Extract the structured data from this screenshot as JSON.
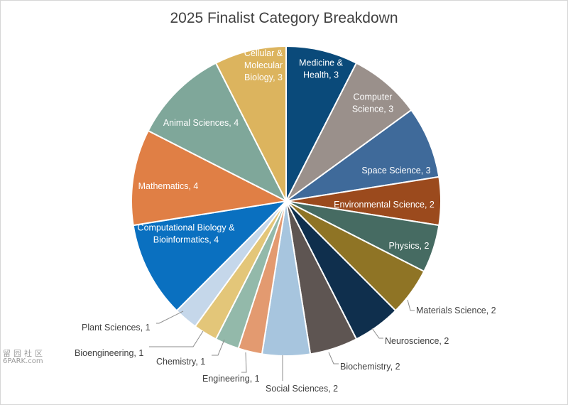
{
  "chart_data": {
    "type": "pie",
    "title": "2025 Finalist Category Breakdown",
    "slices": [
      {
        "label": "Medicine & Health",
        "value": 3,
        "color": "#0a4a7a"
      },
      {
        "label": "Computer Science",
        "value": 3,
        "color": "#9a908b"
      },
      {
        "label": "Space Science",
        "value": 3,
        "color": "#3f6a9a"
      },
      {
        "label": "Environmental Science",
        "value": 2,
        "color": "#9b4a1d"
      },
      {
        "label": "Physics",
        "value": 2,
        "color": "#466b62"
      },
      {
        "label": "Materials Science",
        "value": 2,
        "color": "#8f7425"
      },
      {
        "label": "Neuroscience",
        "value": 2,
        "color": "#0f2f4d"
      },
      {
        "label": "Biochemistry",
        "value": 2,
        "color": "#5e5552"
      },
      {
        "label": "Social Sciences",
        "value": 2,
        "color": "#a7c5de"
      },
      {
        "label": "Engineering",
        "value": 1,
        "color": "#e39a70"
      },
      {
        "label": "Chemistry",
        "value": 1,
        "color": "#93b9aa"
      },
      {
        "label": "Bioengineering",
        "value": 1,
        "color": "#e3c679"
      },
      {
        "label": "Plant Sciences",
        "value": 1,
        "color": "#c5d7ea"
      },
      {
        "label": "Computational Biology & Bioinformatics",
        "value": 4,
        "color": "#0a70c0"
      },
      {
        "label": "Mathematics",
        "value": 4,
        "color": "#e07f45"
      },
      {
        "label": "Animal Sciences",
        "value": 4,
        "color": "#7fa79a"
      },
      {
        "label": "Cellular & Molecular Biology",
        "value": 3,
        "color": "#dcb45e"
      }
    ],
    "slice_labels": [
      {
        "lines": [
          "Medicine &",
          "Health, 3"
        ],
        "color": "#ffffff"
      },
      {
        "lines": [
          "Computer",
          "Science, 3"
        ],
        "color": "#ffffff"
      },
      {
        "lines": [
          "Space Science, 3"
        ],
        "color": "#ffffff"
      },
      {
        "lines": [
          "Environmental Science, 2"
        ],
        "color": "#ffffff"
      },
      {
        "lines": [
          "Physics, 2"
        ],
        "color": "#ffffff"
      },
      {
        "lines": [
          "Materials Science, 2"
        ],
        "color": "#404040"
      },
      {
        "lines": [
          "Neuroscience, 2"
        ],
        "color": "#404040"
      },
      {
        "lines": [
          "Biochemistry, 2"
        ],
        "color": "#404040"
      },
      {
        "lines": [
          "Social Sciences, 2"
        ],
        "color": "#404040"
      },
      {
        "lines": [
          "Engineering, 1"
        ],
        "color": "#404040"
      },
      {
        "lines": [
          "Chemistry, 1"
        ],
        "color": "#404040"
      },
      {
        "lines": [
          "Bioengineering, 1"
        ],
        "color": "#404040"
      },
      {
        "lines": [
          "Plant Sciences, 1"
        ],
        "color": "#404040"
      },
      {
        "lines": [
          "Computational Biology &",
          "Bioinformatics, 4"
        ],
        "color": "#ffffff"
      },
      {
        "lines": [
          "Mathematics, 4"
        ],
        "color": "#ffffff"
      },
      {
        "lines": [
          "Animal Sciences, 4"
        ],
        "color": "#ffffff"
      },
      {
        "lines": [
          "Cellular &",
          "Molecular",
          "Biology, 3"
        ],
        "color": "#ffffff"
      }
    ],
    "start_angle_deg": 0,
    "direction": "clockwise",
    "legend": "none"
  },
  "watermark": {
    "line1": "留园社区",
    "line2": "6PARK.com"
  }
}
